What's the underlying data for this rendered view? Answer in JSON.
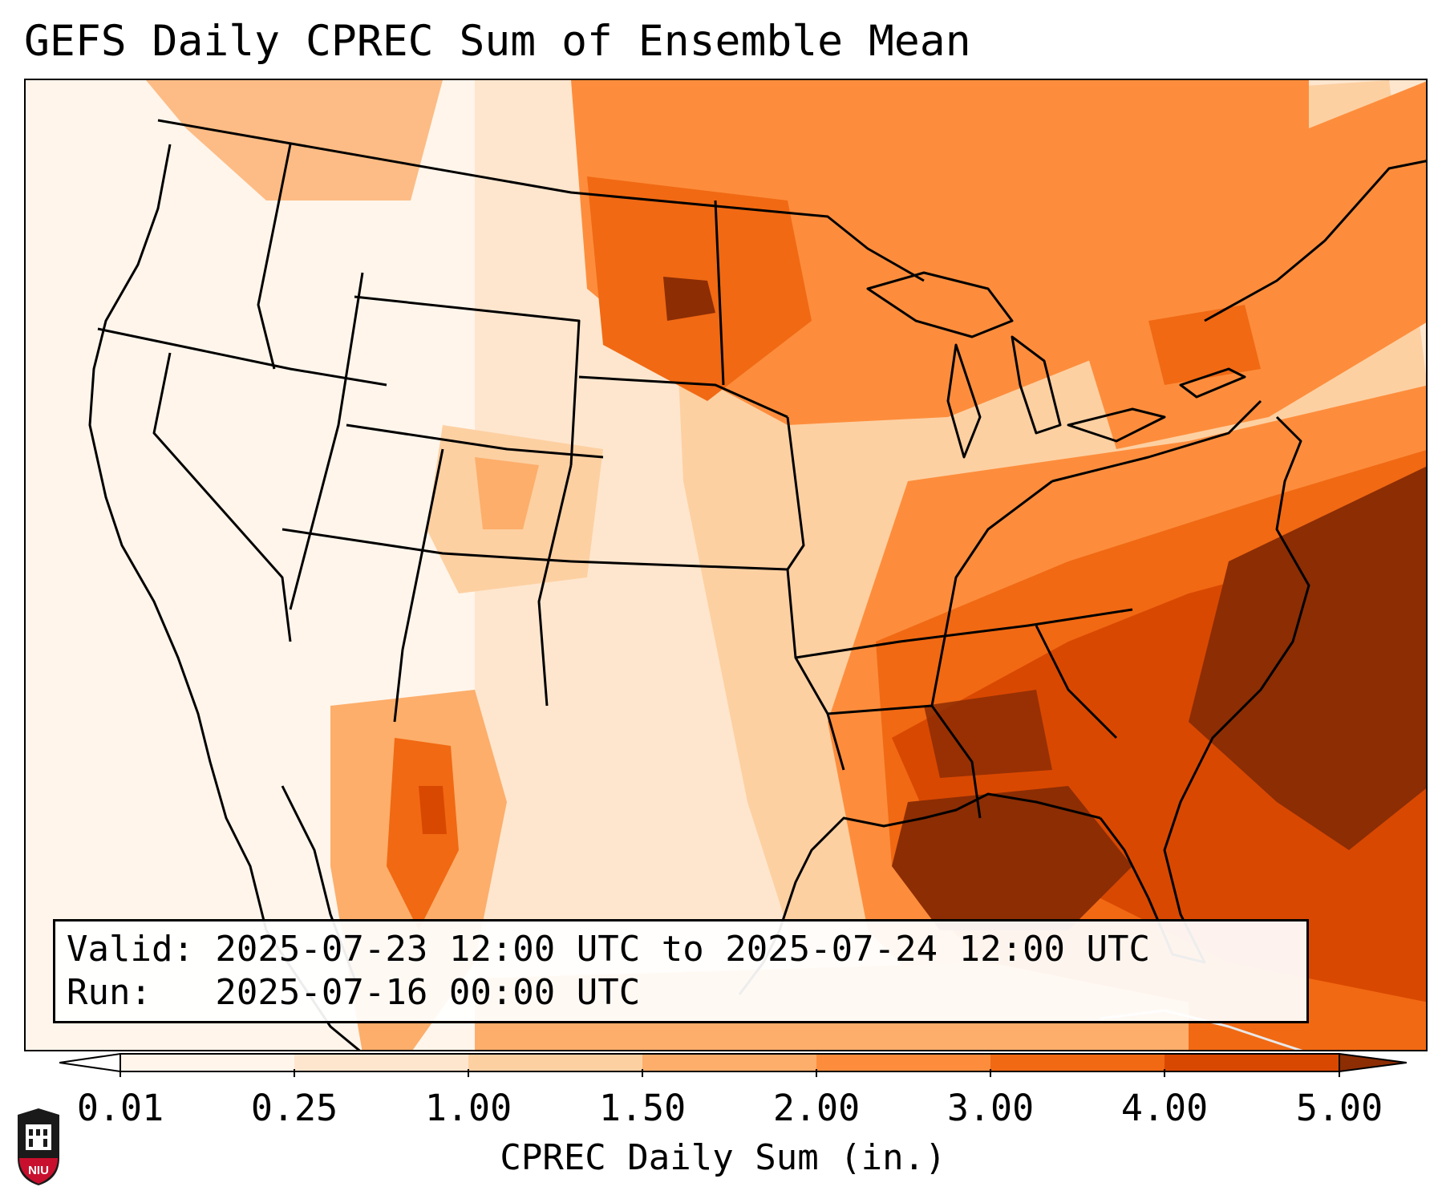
{
  "title": "GEFS Daily CPREC Sum of Ensemble Mean",
  "info": {
    "valid_line": "Valid: 2025-07-23 12:00 UTC to 2025-07-24 12:00 UTC",
    "run_line": "Run:   2025-07-16 00:00 UTC"
  },
  "colorbar": {
    "label": "CPREC Daily Sum (in.)",
    "ticks": [
      "0.01",
      "0.25",
      "1.00",
      "1.50",
      "2.00",
      "3.00",
      "4.00",
      "5.00"
    ],
    "colors": [
      "#fff5eb",
      "#fee6ce",
      "#fdd0a2",
      "#fdae6b",
      "#fd8d3c",
      "#f16913",
      "#d94801",
      "#8c2d04"
    ]
  },
  "logo": {
    "text": "NIU",
    "color": "#c8102e"
  },
  "map": {
    "region": "Contiguous United States",
    "heavy_precip_areas": [
      "Southeast US",
      "Gulf of Mexico",
      "Western Atlantic",
      "Upper Midwest",
      "Northeast"
    ],
    "light_precip_areas": [
      "Pacific Northwest",
      "Great Basin",
      "Southern Plains",
      "Pacific Ocean"
    ]
  }
}
